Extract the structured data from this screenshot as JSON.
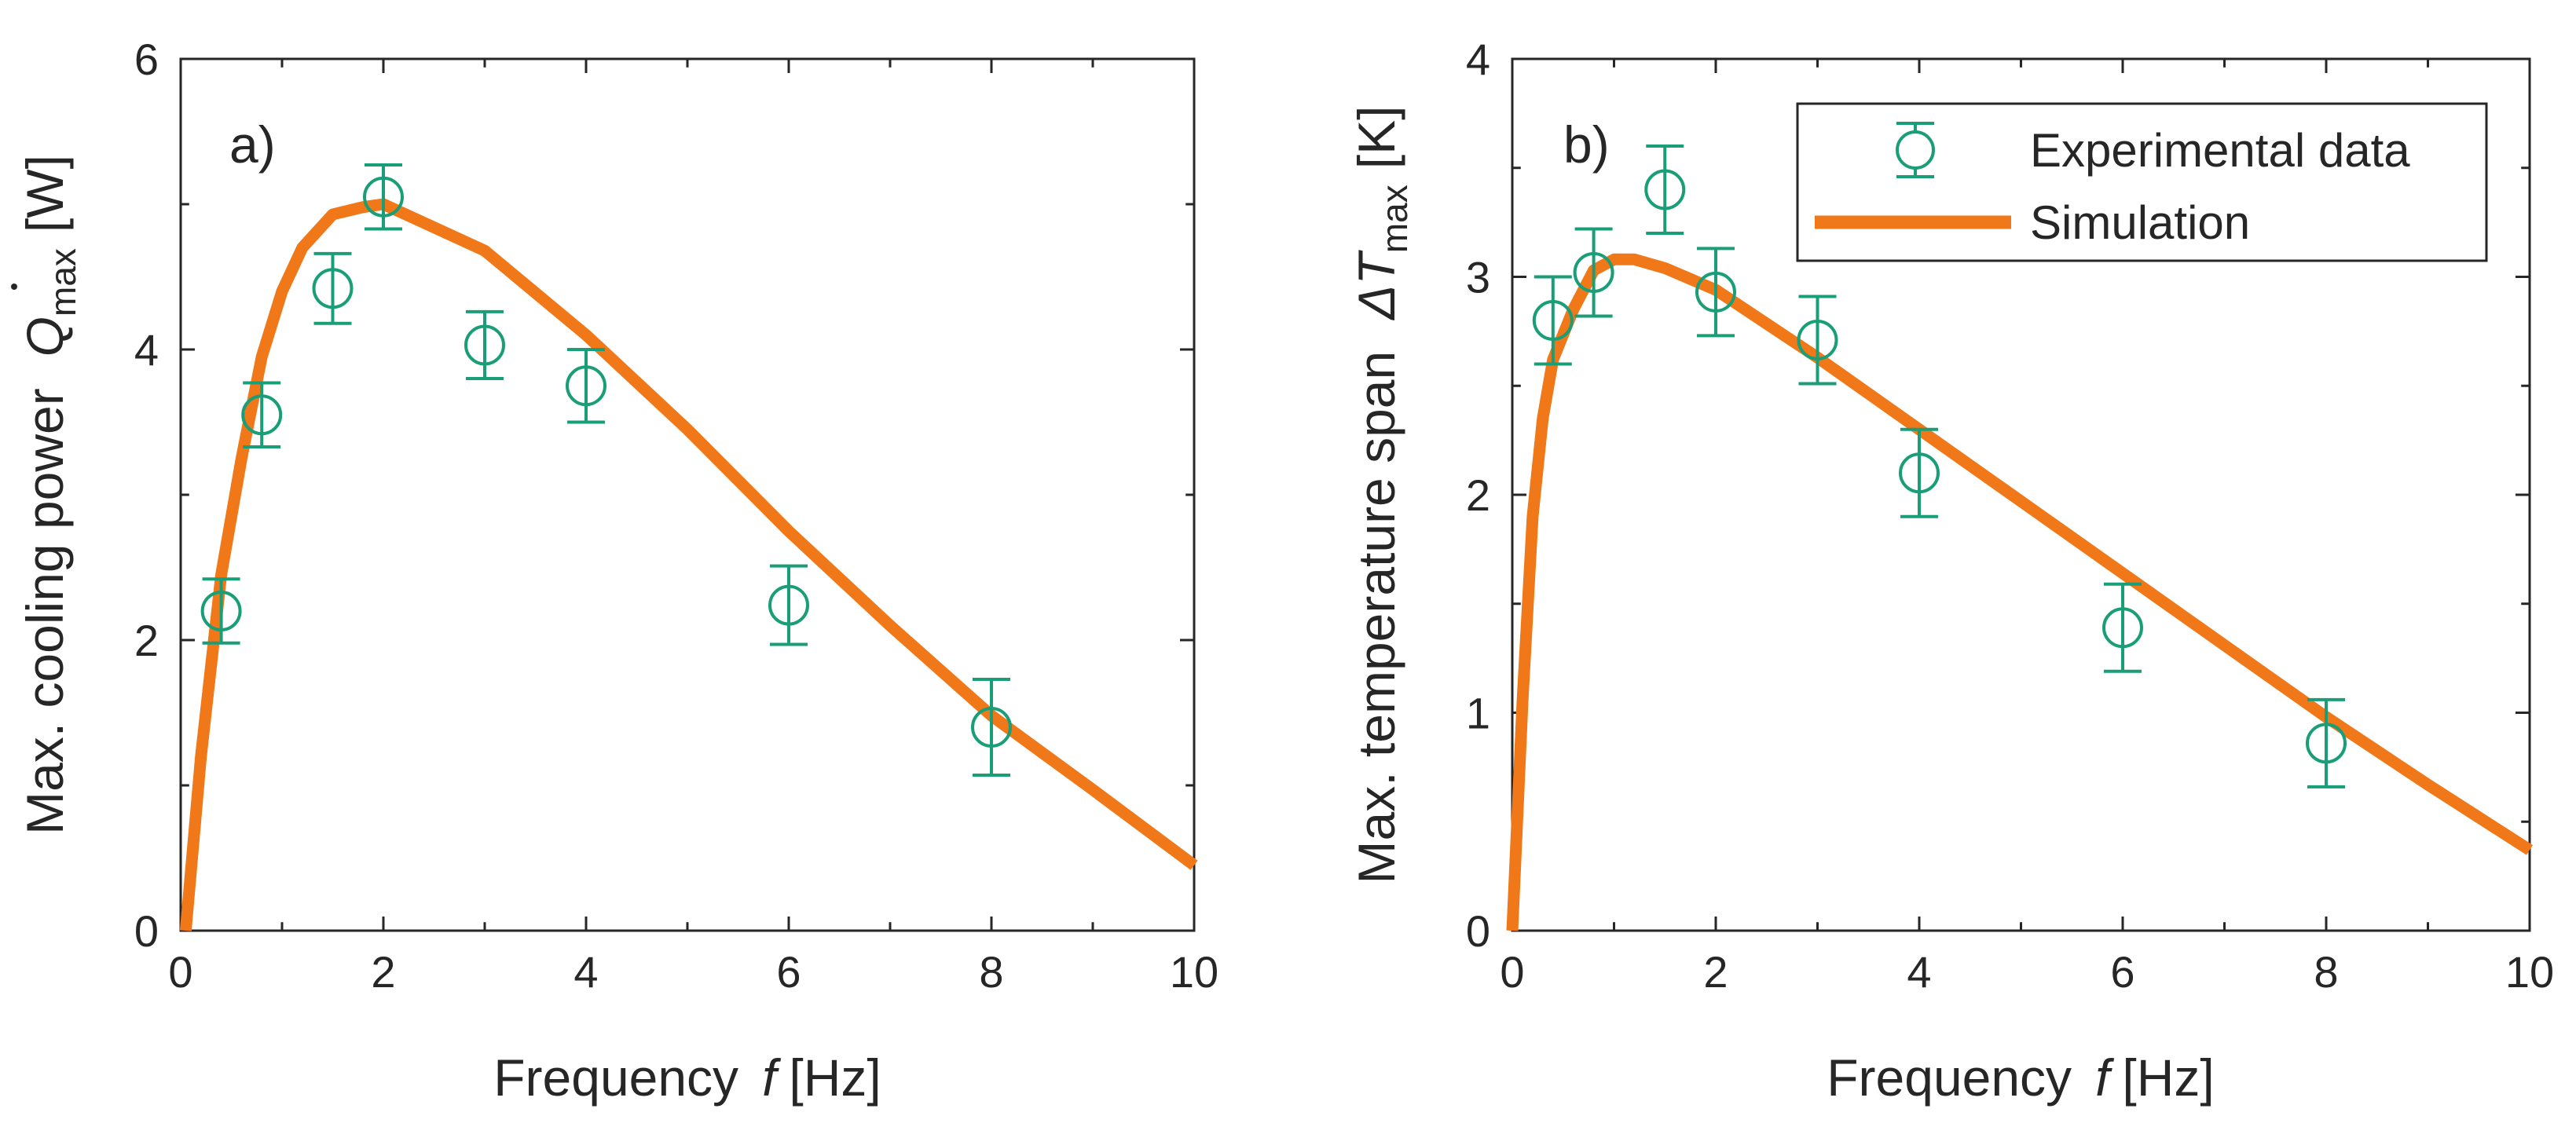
{
  "chart_data": [
    {
      "type": "scatter+line",
      "panel_label": "a)",
      "xlabel": {
        "prefix": "Frequency",
        "symbol": "f",
        "unit": "[Hz]"
      },
      "ylabel": {
        "prefix": "Max. cooling power",
        "symbol": "Q",
        "subscript": "max",
        "unit": "[W]"
      },
      "xlim": [
        0,
        10
      ],
      "ylim": [
        0,
        6
      ],
      "xticks": [
        0,
        2,
        4,
        6,
        8,
        10
      ],
      "yticks": [
        0,
        2,
        4,
        6
      ],
      "xtick_labels": [
        "0",
        "2",
        "4",
        "6",
        "8",
        "10"
      ],
      "ytick_labels": [
        "0",
        "2",
        "4",
        "6"
      ],
      "grid": false,
      "series": [
        {
          "name": "Experimental data",
          "kind": "errorbar",
          "color": "#1a9e77",
          "x": [
            0.4,
            0.8,
            1.5,
            2.0,
            3.0,
            4.0,
            6.0,
            8.0
          ],
          "y": [
            2.2,
            3.55,
            4.42,
            5.05,
            4.03,
            3.75,
            2.24,
            1.4
          ],
          "err": [
            0.22,
            0.22,
            0.24,
            0.22,
            0.23,
            0.25,
            0.27,
            0.33
          ]
        },
        {
          "name": "Simulation",
          "kind": "line",
          "color": "#f07818",
          "x": [
            0.05,
            0.2,
            0.4,
            0.6,
            0.8,
            1.0,
            1.2,
            1.5,
            1.8,
            2.0,
            3.0,
            4.0,
            5.0,
            6.0,
            7.0,
            8.0,
            9.0,
            10.0
          ],
          "y": [
            0.0,
            1.2,
            2.45,
            3.25,
            3.95,
            4.4,
            4.7,
            4.93,
            4.98,
            5.0,
            4.68,
            4.1,
            3.45,
            2.75,
            2.1,
            1.48,
            0.97,
            0.45
          ]
        }
      ]
    },
    {
      "type": "scatter+line",
      "panel_label": "b)",
      "xlabel": {
        "prefix": "Frequency",
        "symbol": "f",
        "unit": "[Hz]"
      },
      "ylabel": {
        "prefix": "Max. temperature span",
        "symbol": "ΔT",
        "subscript": "max",
        "unit": "[K]"
      },
      "xlim": [
        0,
        10
      ],
      "ylim": [
        0,
        4
      ],
      "xticks": [
        0,
        2,
        4,
        6,
        8,
        10
      ],
      "yticks": [
        0,
        1,
        2,
        3,
        4
      ],
      "xtick_labels": [
        "0",
        "2",
        "4",
        "6",
        "8",
        "10"
      ],
      "ytick_labels": [
        "0",
        "1",
        "2",
        "3",
        "4"
      ],
      "grid": false,
      "legend": {
        "placement": "top-right",
        "entries": [
          "Experimental data",
          "Simulation"
        ]
      },
      "series": [
        {
          "name": "Experimental data",
          "kind": "errorbar",
          "color": "#1a9e77",
          "x": [
            0.4,
            0.8,
            1.5,
            2.0,
            3.0,
            4.0,
            6.0,
            8.0
          ],
          "y": [
            2.8,
            3.02,
            3.4,
            2.93,
            2.71,
            2.1,
            1.39,
            0.86
          ],
          "err": [
            0.2,
            0.2,
            0.2,
            0.2,
            0.2,
            0.2,
            0.2,
            0.2
          ]
        },
        {
          "name": "Simulation",
          "kind": "line",
          "color": "#f07818",
          "x": [
            0.0,
            0.1,
            0.2,
            0.3,
            0.4,
            0.6,
            0.8,
            1.0,
            1.2,
            1.5,
            2.0,
            3.0,
            4.0,
            5.0,
            6.0,
            7.0,
            8.0,
            9.0,
            10.0
          ],
          "y": [
            0.0,
            1.05,
            1.9,
            2.35,
            2.62,
            2.85,
            3.03,
            3.08,
            3.08,
            3.04,
            2.94,
            2.63,
            2.3,
            1.97,
            1.64,
            1.31,
            0.98,
            0.67,
            0.37
          ]
        }
      ]
    }
  ]
}
